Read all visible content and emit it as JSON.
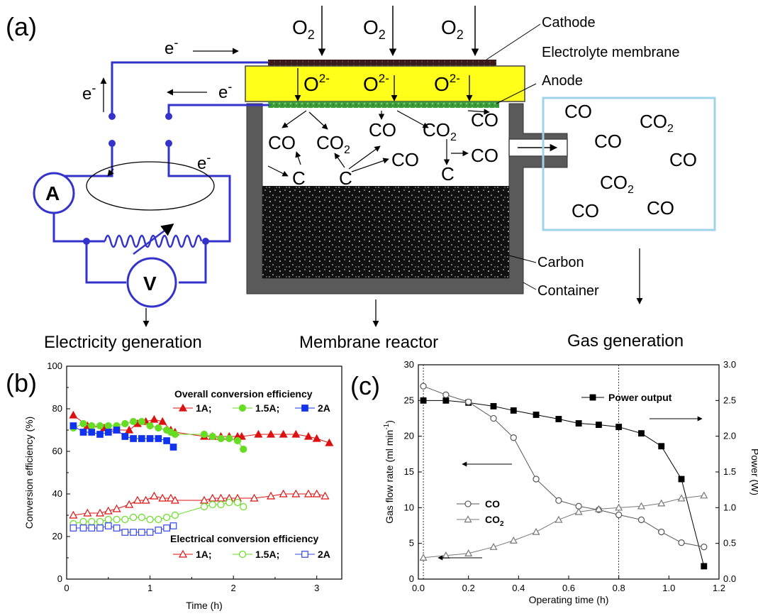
{
  "panel_labels": {
    "a": "(a)",
    "b": "(b)",
    "c": "(c)"
  },
  "diagram": {
    "oxygen": "O",
    "oxygen_sub": "2",
    "oxide_ion": "O",
    "oxide_charge": "2-",
    "electron": "e",
    "electron_charge": "-",
    "labels": {
      "cathode": "Cathode",
      "membrane": "Electrolyte membrane",
      "anode": "Anode",
      "carbon": "Carbon",
      "container": "Container",
      "ammeter": "A",
      "voltmeter": "V"
    },
    "species": {
      "co": "CO",
      "co2": "CO",
      "co2_sub": "2",
      "c": "C"
    },
    "sections": {
      "electricity": "Electricity generation",
      "reactor": "Membrane reactor",
      "gas": "Gas generation"
    },
    "colors": {
      "circuit": "#3333cc",
      "membrane": "#ffff1a",
      "anode": "#44aa44",
      "container": "#555555",
      "box": "#9fd3e8"
    }
  },
  "chart_data": [
    {
      "type": "line",
      "panel": "b",
      "xlabel": "Time (h)",
      "ylabel": "Conversion efficiency (%)",
      "xlim": [
        0,
        3.3
      ],
      "ylim": [
        0,
        100
      ],
      "xticks": [
        "0",
        "1",
        "2",
        "3"
      ],
      "yticks": [
        "0",
        "20",
        "40",
        "60",
        "80",
        "100"
      ],
      "legend_groups": [
        {
          "title": "Overall conversion efficiency",
          "entries": [
            "1A;",
            "1.5A;",
            "2A"
          ]
        },
        {
          "title": "Electrical conversion efficiency",
          "entries": [
            "1A;",
            "1.5A;",
            "2A"
          ]
        }
      ],
      "series": [
        {
          "name": "1A",
          "group": "overall",
          "color": "#dd1111",
          "marker": "triangle",
          "filled": true,
          "x": [
            0.08,
            0.25,
            0.45,
            0.6,
            0.75,
            0.85,
            0.95,
            1.05,
            1.15,
            1.25,
            1.3,
            1.65,
            1.75,
            1.85,
            1.95,
            2.05,
            2.1,
            2.3,
            2.45,
            2.6,
            2.75,
            2.9,
            3.0,
            3.15
          ],
          "y": [
            77,
            72,
            71,
            70,
            70,
            73,
            74,
            75,
            74,
            70,
            69,
            67,
            67,
            67,
            67,
            67,
            67,
            68,
            68,
            68,
            68,
            67,
            66,
            64
          ]
        },
        {
          "name": "1.5A",
          "group": "overall",
          "color": "#66dd22",
          "marker": "circle",
          "filled": true,
          "x": [
            0.08,
            0.2,
            0.3,
            0.4,
            0.5,
            0.6,
            0.7,
            0.8,
            0.9,
            1.0,
            1.1,
            1.2,
            1.25,
            1.3,
            1.65,
            1.75,
            1.85,
            1.95,
            2.05,
            2.12
          ],
          "y": [
            71,
            73,
            72,
            72,
            72,
            72,
            73,
            74,
            74,
            72,
            71,
            70,
            69,
            68,
            68,
            67,
            66,
            66,
            65,
            61
          ]
        },
        {
          "name": "2A",
          "group": "overall",
          "color": "#1133ee",
          "marker": "square",
          "filled": true,
          "x": [
            0.08,
            0.2,
            0.3,
            0.4,
            0.5,
            0.6,
            0.7,
            0.8,
            0.9,
            1.0,
            1.1,
            1.2,
            1.28
          ],
          "y": [
            72,
            69,
            69,
            68,
            69,
            70,
            67,
            66,
            66,
            66,
            66,
            65,
            62
          ]
        },
        {
          "name": "1A",
          "group": "electrical",
          "color": "#dd1111",
          "marker": "triangle",
          "filled": false,
          "x": [
            0.08,
            0.25,
            0.4,
            0.5,
            0.6,
            0.75,
            0.85,
            0.95,
            1.05,
            1.15,
            1.25,
            1.3,
            1.65,
            1.75,
            1.85,
            1.95,
            2.05,
            2.25,
            2.45,
            2.6,
            2.75,
            2.9,
            3.0,
            3.1
          ],
          "y": [
            30,
            31,
            31,
            32,
            33,
            35,
            37,
            37,
            39,
            38,
            38,
            37,
            37,
            38,
            38,
            38,
            38,
            38,
            39,
            40,
            40,
            40,
            40,
            39
          ]
        },
        {
          "name": "1.5A",
          "group": "electrical",
          "color": "#66dd22",
          "marker": "circle",
          "filled": false,
          "x": [
            0.08,
            0.2,
            0.3,
            0.4,
            0.5,
            0.6,
            0.7,
            0.8,
            0.9,
            1.0,
            1.1,
            1.2,
            1.3,
            1.65,
            1.75,
            1.85,
            1.95,
            2.05,
            2.12
          ],
          "y": [
            26,
            27,
            27,
            27,
            28,
            28,
            28,
            29,
            29,
            28,
            28,
            29,
            30,
            34,
            35,
            35,
            36,
            36,
            34
          ]
        },
        {
          "name": "2A",
          "group": "electrical",
          "color": "#3344ee",
          "marker": "square",
          "filled": false,
          "x": [
            0.08,
            0.2,
            0.3,
            0.4,
            0.5,
            0.6,
            0.7,
            0.8,
            0.9,
            1.0,
            1.1,
            1.2,
            1.28
          ],
          "y": [
            24,
            24,
            24,
            24,
            25,
            24,
            22,
            22,
            22,
            22,
            23,
            24,
            25
          ]
        }
      ]
    },
    {
      "type": "line",
      "panel": "c",
      "xlabel": "Operating time (h)",
      "ylabel": "Gas flow rate (ml min",
      "ylabel_sup": "-1",
      "ylabel_end": ")",
      "y2label": "Power  (W)",
      "xlim": [
        0,
        1.2
      ],
      "ylim": [
        0,
        30
      ],
      "y2lim": [
        0,
        3.0
      ],
      "xticks": [
        "0.0",
        "0.2",
        "0.4",
        "0.6",
        "0.8",
        "1.0",
        "1.2"
      ],
      "yticks": [
        "0",
        "5",
        "10",
        "15",
        "20",
        "25",
        "30"
      ],
      "y2ticks": [
        "0.0",
        "0.5",
        "1.0",
        "1.5",
        "2.0",
        "2.5",
        "3.0"
      ],
      "vlines": [
        0.02,
        0.8
      ],
      "legend": {
        "power": "Power output",
        "co": "CO",
        "co2": "CO",
        "co2_sub": "2"
      },
      "series": [
        {
          "name": "Power output",
          "axis": "right",
          "marker": "square",
          "filled": true,
          "x": [
            0.02,
            0.11,
            0.2,
            0.3,
            0.38,
            0.47,
            0.56,
            0.64,
            0.72,
            0.8,
            0.89,
            0.97,
            1.05,
            1.14
          ],
          "y": [
            2.5,
            2.5,
            2.47,
            2.42,
            2.36,
            2.3,
            2.24,
            2.18,
            2.16,
            2.13,
            2.04,
            1.86,
            1.4,
            0.18
          ]
        },
        {
          "name": "CO",
          "axis": "left",
          "marker": "circle",
          "filled": false,
          "x": [
            0.02,
            0.11,
            0.2,
            0.3,
            0.38,
            0.47,
            0.56,
            0.64,
            0.72,
            0.8,
            0.89,
            0.97,
            1.05,
            1.14
          ],
          "y": [
            27,
            25.8,
            24.8,
            22.5,
            19.8,
            14,
            11,
            10.2,
            9.7,
            9,
            8.3,
            6.6,
            5.1,
            4.5
          ]
        },
        {
          "name": "CO2",
          "axis": "left",
          "marker": "triangle",
          "filled": false,
          "x": [
            0.02,
            0.11,
            0.2,
            0.3,
            0.38,
            0.47,
            0.56,
            0.64,
            0.72,
            0.8,
            0.89,
            0.97,
            1.05,
            1.14
          ],
          "y": [
            3,
            3.3,
            3.6,
            4.5,
            5.4,
            6.6,
            8.3,
            9.4,
            9.8,
            10,
            10.2,
            10.6,
            11.3,
            11.7
          ]
        }
      ]
    }
  ]
}
